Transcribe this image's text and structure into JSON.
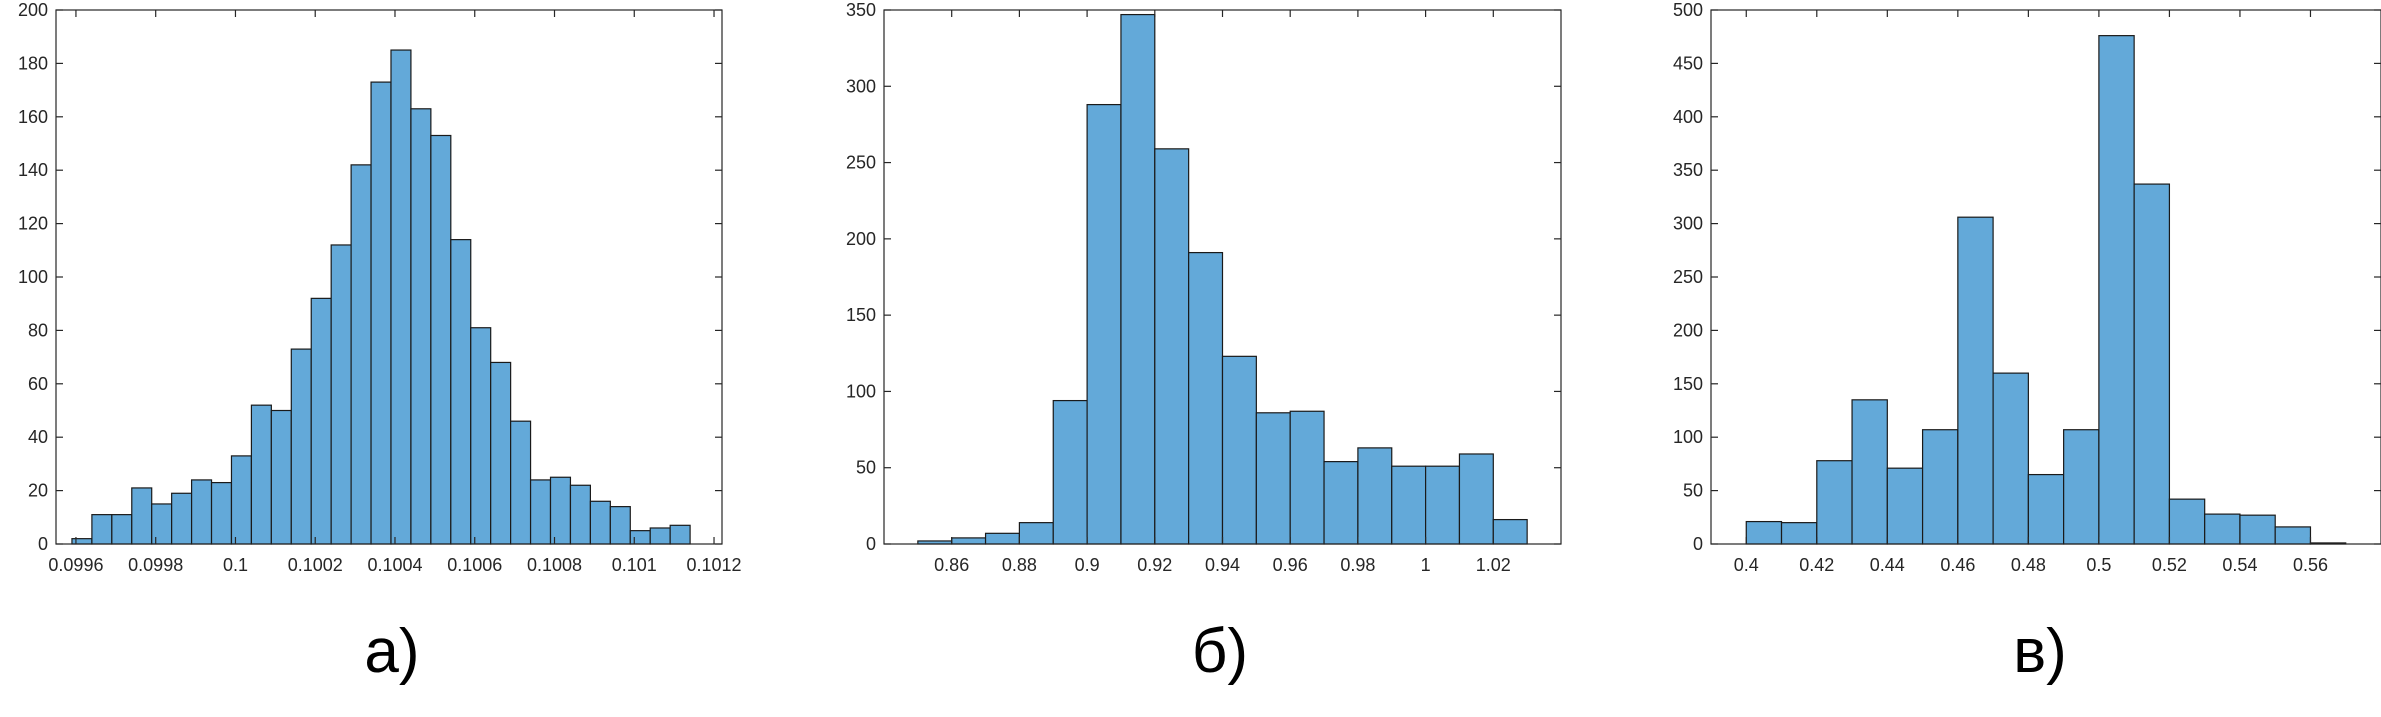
{
  "figure": {
    "captions": [
      "а)",
      "б)",
      "в)"
    ]
  },
  "colors": {
    "bar_fill": "#63a9d9",
    "bar_edge": "#1a1a1a",
    "axes": "#262626"
  },
  "chart_data": [
    {
      "type": "bar",
      "title": "",
      "xlabel": "",
      "ylabel": "",
      "grid": false,
      "xlim": [
        0.09955,
        0.10122
      ],
      "ylim": [
        0,
        200
      ],
      "xticks": [
        0.0996,
        0.0998,
        0.1,
        0.1002,
        0.1004,
        0.1006,
        0.1008,
        0.101,
        0.1012
      ],
      "xtick_labels": [
        "0.0996",
        "0.0998",
        "0.1",
        "0.1002",
        "0.1004",
        "0.1006",
        "0.1008",
        "0.101",
        "0.1012"
      ],
      "yticks": [
        0,
        20,
        40,
        60,
        80,
        100,
        120,
        140,
        160,
        180,
        200
      ],
      "ytick_labels": [
        "0",
        "20",
        "40",
        "60",
        "80",
        "100",
        "120",
        "140",
        "160",
        "180",
        "200"
      ],
      "bin_start": 0.09959,
      "bin_width": 5e-05,
      "values": [
        2,
        11,
        11,
        21,
        15,
        19,
        24,
        23,
        33,
        52,
        50,
        73,
        92,
        112,
        142,
        173,
        185,
        163,
        153,
        114,
        81,
        68,
        46,
        24,
        25,
        22,
        16,
        14,
        5,
        6,
        7
      ]
    },
    {
      "type": "bar",
      "title": "",
      "xlabel": "",
      "ylabel": "",
      "grid": false,
      "xlim": [
        0.84,
        1.04
      ],
      "ylim": [
        0,
        350
      ],
      "xticks": [
        0.86,
        0.88,
        0.9,
        0.92,
        0.94,
        0.96,
        0.98,
        1,
        1.02
      ],
      "xtick_labels": [
        "0.86",
        "0.88",
        "0.9",
        "0.92",
        "0.94",
        "0.96",
        "0.98",
        "1",
        "1.02"
      ],
      "yticks": [
        0,
        50,
        100,
        150,
        200,
        250,
        300,
        350
      ],
      "ytick_labels": [
        "0",
        "50",
        "100",
        "150",
        "200",
        "250",
        "300",
        "350"
      ],
      "bin_start": 0.85,
      "bin_width": 0.01,
      "values": [
        2,
        4,
        7,
        14,
        94,
        288,
        347,
        259,
        191,
        123,
        86,
        87,
        54,
        63,
        51,
        51,
        59,
        16
      ]
    },
    {
      "type": "bar",
      "title": "",
      "xlabel": "",
      "ylabel": "",
      "grid": false,
      "xlim": [
        0.39,
        0.58
      ],
      "ylim": [
        0,
        500
      ],
      "xticks": [
        0.4,
        0.42,
        0.44,
        0.46,
        0.48,
        0.5,
        0.52,
        0.54,
        0.56
      ],
      "xtick_labels": [
        "0.4",
        "0.42",
        "0.44",
        "0.46",
        "0.48",
        "0.5",
        "0.52",
        "0.54",
        "0.56"
      ],
      "yticks": [
        0,
        50,
        100,
        150,
        200,
        250,
        300,
        350,
        400,
        450,
        500
      ],
      "ytick_labels": [
        "0",
        "50",
        "100",
        "150",
        "200",
        "250",
        "300",
        "350",
        "400",
        "450",
        "500"
      ],
      "bin_start": 0.4,
      "bin_width": 0.01,
      "values": [
        21,
        20,
        78,
        135,
        71,
        107,
        306,
        160,
        65,
        107,
        476,
        337,
        42,
        28,
        27,
        16,
        1
      ]
    }
  ]
}
